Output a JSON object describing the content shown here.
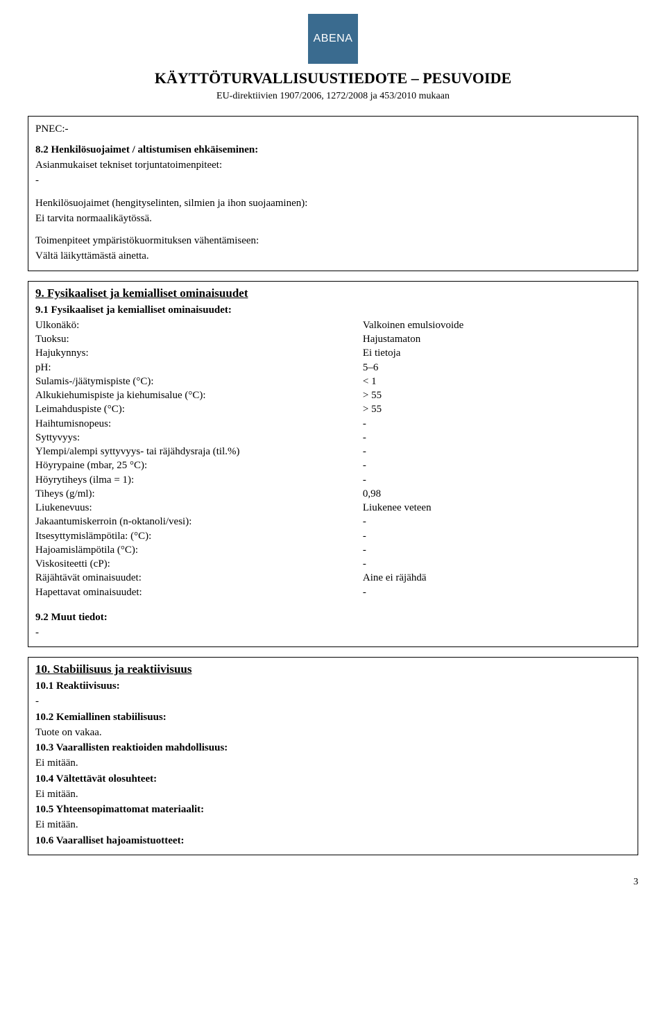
{
  "logo_text": "ABENA",
  "doc_title": "KÄYTTÖTURVALLISUUSTIEDOTE – PESUVOIDE",
  "doc_subtitle": "EU-direktiivien 1907/2006, 1272/2008 ja 453/2010 mukaan",
  "pnec": "PNEC:-",
  "section8": {
    "heading": "8.2 Henkilösuojaimet / altistumisen ehkäiseminen:",
    "p1": "Asianmukaiset tekniset torjuntatoimenpiteet:",
    "p1v": "-",
    "p2": "Henkilösuojaimet (hengityselinten, silmien ja ihon suojaaminen):",
    "p2v": "Ei tarvita normaalikäytössä.",
    "p3": "Toimenpiteet ympäristökuormituksen vähentämiseen:",
    "p3v": "Vältä läikyttämästä ainetta."
  },
  "section9": {
    "heading": "9.   Fysikaaliset ja kemialliset ominaisuudet",
    "sub1": "9.1 Fysikaaliset ja kemialliset ominaisuudet:",
    "rows": [
      {
        "label": "Ulkonäkö:",
        "value": "Valkoinen emulsiovoide"
      },
      {
        "label": "Tuoksu:",
        "value": "Hajustamaton"
      },
      {
        "label": "Hajukynnys:",
        "value": "Ei tietoja"
      },
      {
        "label": "pH:",
        "value": "5–6"
      },
      {
        "label": "Sulamis-/jäätymispiste (°C):",
        "value": "< 1"
      },
      {
        "label": "Alkukiehumispiste ja kiehumisalue (°C):",
        "value": "> 55"
      },
      {
        "label": "Leimahduspiste (°C):",
        "value": "> 55"
      },
      {
        "label": "Haihtumisnopeus:",
        "value": "-"
      },
      {
        "label": "Syttyvyys:",
        "value": "-"
      },
      {
        "label": "Ylempi/alempi syttyvyys- tai räjähdysraja (til.%)",
        "value": "-"
      },
      {
        "label": "Höyrypaine (mbar, 25 °C):",
        "value": "-"
      },
      {
        "label": "Höyrytiheys (ilma = 1):",
        "value": "-"
      },
      {
        "label": "Tiheys (g/ml):",
        "value": "0,98"
      },
      {
        "label": "Liukenevuus:",
        "value": "Liukenee veteen"
      },
      {
        "label": "Jakaantumiskerroin (n-oktanoli/vesi):",
        "value": "  -"
      },
      {
        "label": "Itsesyttymislämpötila: (°C):",
        "value": "  -"
      },
      {
        "label": "Hajoamislämpötila (°C):",
        "value": "  -"
      },
      {
        "label": "Viskositeetti (cP):",
        "value": "  -"
      },
      {
        "label": "Räjähtävät ominaisuudet:",
        "value": "Aine ei räjähdä"
      },
      {
        "label": "Hapettavat ominaisuudet:",
        "value": "-"
      }
    ],
    "sub2": "9.2 Muut tiedot:",
    "sub2v": "-"
  },
  "section10": {
    "heading": "10. Stabiilisuus ja reaktiivisuus",
    "s1": "10.1 Reaktiivisuus:",
    "s1v": "-",
    "s2": "10.2 Kemiallinen stabiilisuus:",
    "s2v": "Tuote on vakaa.",
    "s3": "10.3 Vaarallisten reaktioiden mahdollisuus:",
    "s3v": " Ei mitään.",
    "s4": "10.4 Vältettävät olosuhteet:",
    "s4v": "Ei mitään.",
    "s5": "10.5 Yhteensopimattomat materiaalit:",
    "s5v": "Ei mitään.",
    "s6": "10.6 Vaaralliset hajoamistuotteet:"
  },
  "page_number": "3"
}
